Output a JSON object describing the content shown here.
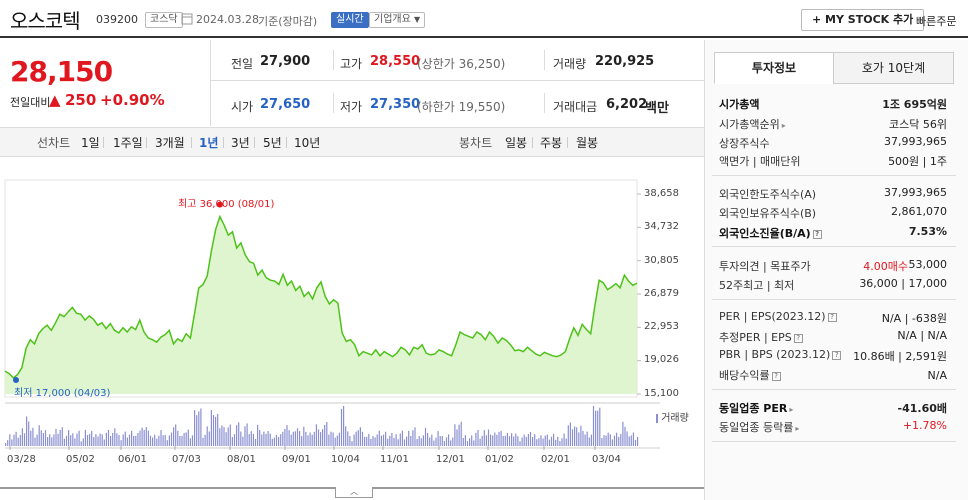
{
  "header": {
    "stock_name": "오스코텍",
    "stock_code": "039200",
    "market": "코스닥",
    "date": "2024.03.28",
    "date_basis": "기준(장마감)",
    "realtime": "실시간",
    "company_overview": "기업개요",
    "my_stock_button": "+ MY STOCK 추가",
    "quick_order": "빠른주문"
  },
  "price": {
    "current": "28,150",
    "change_label": "전일대비",
    "change_amount": "250",
    "change_pct": "+0.90%",
    "direction_arrow": "▲"
  },
  "quote": {
    "prev_close_label": "전일",
    "prev_close": "27,900",
    "high_label": "고가",
    "high": "28,550",
    "upper_limit": "(상한가 36,250)",
    "volume_label": "거래량",
    "volume": "220,925",
    "open_label": "시가",
    "open": "27,650",
    "low_label": "저가",
    "low": "27,350",
    "lower_limit": "(하한가 19,550)",
    "amount_label": "거래대금",
    "amount": "6,202",
    "amount_unit": "백만"
  },
  "tabs": {
    "line_label": "선차트",
    "line": [
      "1일",
      "1주일",
      "3개월",
      "1년",
      "3년",
      "5년",
      "10년"
    ],
    "active": "1년",
    "candle_label": "봉차트",
    "candle": [
      "일봉",
      "주봉",
      "월봉"
    ]
  },
  "chart": {
    "max_label": "최고 36,000 (08/01)",
    "min_label": "최저 17,000 (04/03)",
    "volume_label": "거래량",
    "y_ticks": [
      "38,658",
      "34,732",
      "30,805",
      "26,879",
      "22,953",
      "19,026",
      "15,100"
    ],
    "x_ticks": [
      "03/28",
      "05/02",
      "06/01",
      "07/03",
      "08/01",
      "09/01",
      "10/04",
      "11/01",
      "12/01",
      "01/02",
      "02/01",
      "03/04"
    ]
  },
  "chart_data": {
    "type": "area",
    "ylim": [
      15100,
      38658
    ],
    "y_ticks": [
      38658,
      34732,
      30805,
      26879,
      22953,
      19026,
      15100
    ],
    "x_ticks": [
      "03/28",
      "05/02",
      "06/01",
      "07/03",
      "08/01",
      "09/01",
      "10/04",
      "11/01",
      "12/01",
      "01/02",
      "02/01",
      "03/04"
    ],
    "prices": [
      17800,
      17500,
      17000,
      17400,
      18200,
      20500,
      21500,
      21000,
      22200,
      22800,
      23200,
      22600,
      23500,
      24500,
      24200,
      24800,
      25300,
      24600,
      24500,
      23800,
      24300,
      23900,
      23200,
      23500,
      22800,
      23400,
      22600,
      22300,
      22900,
      22400,
      23000,
      22700,
      23800,
      22400,
      21700,
      21500,
      21200,
      21800,
      22100,
      22600,
      21000,
      21600,
      21300,
      22200,
      21700,
      24600,
      27600,
      28000,
      29000,
      32000,
      34500,
      36000,
      35000,
      33800,
      34200,
      32300,
      32900,
      31500,
      30700,
      30500,
      29100,
      29700,
      28800,
      28500,
      28400,
      28000,
      29200,
      27900,
      28400,
      27300,
      27800,
      26600,
      27100,
      26300,
      27600,
      28300,
      26600,
      25700,
      26200,
      25800,
      22300,
      21300,
      21500,
      20900,
      19600,
      20100,
      19900,
      19700,
      20300,
      19600,
      20100,
      19800,
      19500,
      19900,
      20600,
      20300,
      19700,
      20600,
      20400,
      20900,
      19900,
      19700,
      19800,
      20300,
      20100,
      19800,
      19600,
      20900,
      22400,
      22100,
      21900,
      21700,
      22400,
      22100,
      21500,
      22400,
      21900,
      21100,
      21700,
      21400,
      20900,
      20200,
      20300,
      20100,
      20600,
      20200,
      19800,
      19600,
      20000,
      19800,
      19600,
      19500,
      19700,
      20100,
      21600,
      22900,
      22000,
      23300,
      22700,
      22200,
      25500,
      28500,
      28200,
      27400,
      27700,
      28100,
      27600,
      29100,
      28400,
      27900,
      28150
    ],
    "max": {
      "value": 36000,
      "date": "08/01"
    },
    "min": {
      "value": 17000,
      "date": "04/03"
    },
    "grid": false
  },
  "invest": {
    "tab_info": "투자정보",
    "tab_orderbook": "호가 10단계",
    "rows": [
      {
        "label": "시가총액",
        "value": "1조 695억원",
        "bold": true
      },
      {
        "label": "시가총액순위",
        "value": "코스닥 56위"
      },
      {
        "label": "상장주식수",
        "value": "37,993,965"
      },
      {
        "label": "액면가 | 매매단위",
        "value": "500원 | 1주"
      },
      {
        "label": "외국인한도주식수(A)",
        "value": "37,993,965"
      },
      {
        "label": "외국인보유주식수(B)",
        "value": "2,861,070"
      },
      {
        "label": "외국인소진율(B/A)",
        "value": "7.53%",
        "bold": true
      },
      {
        "label": "투자의견 | 목표주가",
        "value_red": "4.00매수",
        "value": "53,000"
      },
      {
        "label": "52주최고 | 최저",
        "value": "36,000 | 17,000"
      },
      {
        "label": "PER | EPS(2023.12)",
        "value": "N/A | -638원"
      },
      {
        "label": "추정PER | EPS",
        "value": "N/A | N/A"
      },
      {
        "label": "PBR | BPS (2023.12)",
        "value": "10.86배 | 2,591원"
      },
      {
        "label": "배당수익률",
        "value": "N/A"
      },
      {
        "label": "동일업종 PER",
        "value": "-41.60배",
        "bold": true
      },
      {
        "label": "동일업종 등락률",
        "value": "+1.78%",
        "red": true
      }
    ]
  },
  "colors": {
    "up": "#e0171f",
    "down": "#2562c4",
    "chart_line": "#4fc21a",
    "chart_fill": "#dff5cf"
  }
}
